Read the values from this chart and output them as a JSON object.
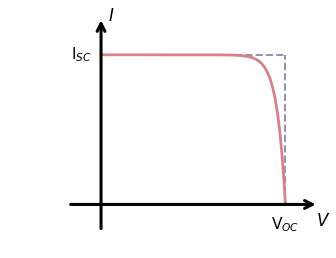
{
  "title": "",
  "xlabel": "V",
  "ylabel": "I",
  "isc_label": "I$_{SC}$",
  "voc_label": "V$_{OC}$",
  "curve_color": "#d9808a",
  "curve_linewidth": 2.0,
  "dashed_color": "#9090aa",
  "dashed_linewidth": 1.4,
  "background_color": "#ffffff",
  "isc": 1.0,
  "voc": 1.0,
  "n_points": 500,
  "diode_ideality": 22.0,
  "figsize": [
    3.36,
    2.58
  ],
  "dpi": 100,
  "xlim": [
    -0.22,
    1.22
  ],
  "ylim": [
    -0.22,
    1.28
  ]
}
